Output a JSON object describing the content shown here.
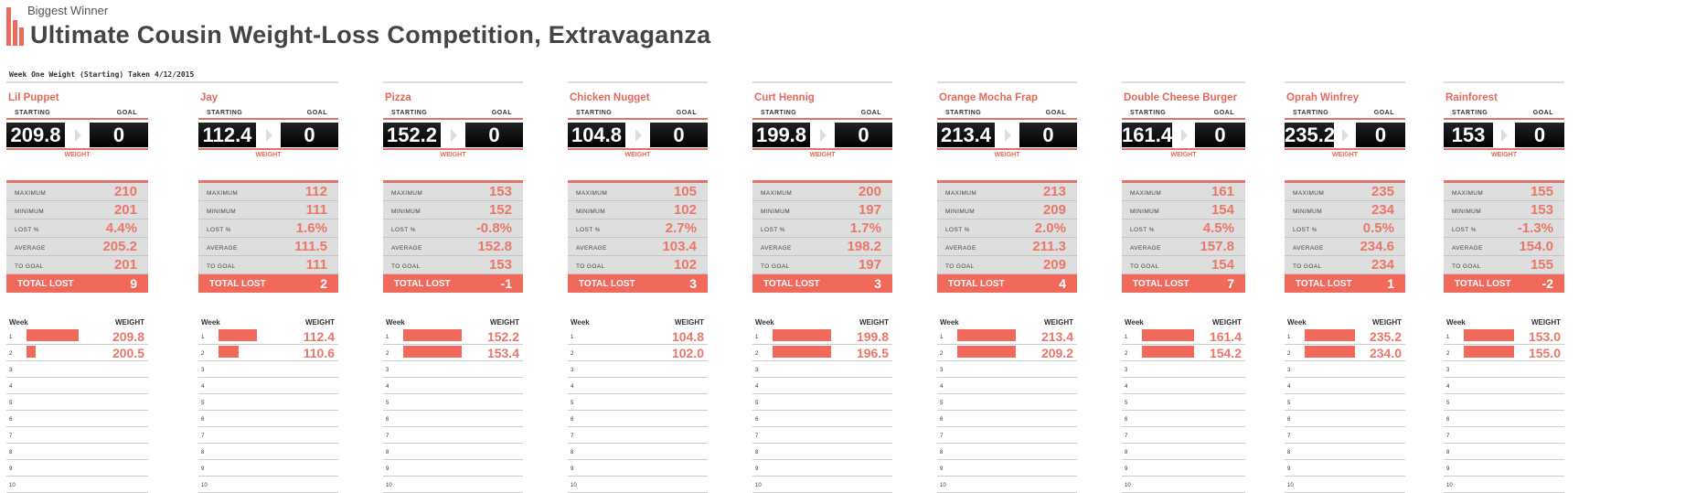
{
  "header": {
    "supertitle": "Biggest Winner",
    "title": "Ultimate Cousin Weight-Loss Competition, Extravaganza",
    "subtitle": "Week One Weight  (Starting) Taken 4/12/2015"
  },
  "labels": {
    "starting": "STARTING",
    "goal": "GOAL",
    "weight": "WEIGHT",
    "maximum": "MAXIMUM",
    "minimum": "MINIMUM",
    "lost_pct": "LOST %",
    "average": "AVERAGE",
    "to_goal": "TO GOAL",
    "total_lost": "TOTAL LOST",
    "week": "Week",
    "week_weight": "WEIGHT"
  },
  "colors": {
    "accent": "#f0695a",
    "value_text": "#e8776a",
    "stats_bg": "#dedede"
  },
  "week_numbers": [
    "1",
    "2",
    "3",
    "4",
    "5",
    "6",
    "7",
    "8",
    "9",
    "10"
  ],
  "contestants": [
    {
      "name": "Lil Puppet",
      "starting": "209.8",
      "goal": "0",
      "maximum": "210",
      "minimum": "201",
      "lost_pct": "4.4%",
      "average": "205.2",
      "to_goal": "201",
      "total_lost": "9",
      "weeks": [
        "209.8",
        "200.5"
      ],
      "bar_fill": [
        0.88,
        0.15
      ]
    },
    {
      "name": "Jay",
      "starting": "112.4",
      "goal": "0",
      "maximum": "112",
      "minimum": "111",
      "lost_pct": "1.6%",
      "average": "111.5",
      "to_goal": "111",
      "total_lost": "2",
      "weeks": [
        "112.4",
        "110.6"
      ],
      "bar_fill": [
        0.65,
        0.35
      ]
    },
    {
      "name": "Pizza",
      "starting": "152.2",
      "goal": "0",
      "maximum": "153",
      "minimum": "152",
      "lost_pct": "-0.8%",
      "average": "152.8",
      "to_goal": "153",
      "total_lost": "-1",
      "weeks": [
        "152.2",
        "153.4"
      ],
      "bar_fill": [
        1,
        1
      ]
    },
    {
      "name": "Chicken Nugget",
      "starting": "104.8",
      "goal": "0",
      "maximum": "105",
      "minimum": "102",
      "lost_pct": "2.7%",
      "average": "103.4",
      "to_goal": "102",
      "total_lost": "3",
      "weeks": [
        "104.8",
        "102.0"
      ],
      "bar_fill": [
        0,
        0
      ]
    },
    {
      "name": "Curt Hennig",
      "starting": "199.8",
      "goal": "0",
      "maximum": "200",
      "minimum": "197",
      "lost_pct": "1.7%",
      "average": "198.2",
      "to_goal": "197",
      "total_lost": "3",
      "weeks": [
        "199.8",
        "196.5"
      ],
      "bar_fill": [
        1,
        1
      ]
    },
    {
      "name": "Orange Mocha Frap",
      "starting": "213.4",
      "goal": "0",
      "maximum": "213",
      "minimum": "209",
      "lost_pct": "2.0%",
      "average": "211.3",
      "to_goal": "209",
      "total_lost": "4",
      "weeks": [
        "213.4",
        "209.2"
      ],
      "bar_fill": [
        1,
        1
      ]
    },
    {
      "name": "Double Cheese Burger",
      "starting": "161.4",
      "goal": "0",
      "maximum": "161",
      "minimum": "154",
      "lost_pct": "4.5%",
      "average": "157.8",
      "to_goal": "154",
      "total_lost": "7",
      "weeks": [
        "161.4",
        "154.2"
      ],
      "bar_fill": [
        1,
        1
      ]
    },
    {
      "name": "Oprah Winfrey",
      "starting": "235.2",
      "goal": "0",
      "maximum": "235",
      "minimum": "234",
      "lost_pct": "0.5%",
      "average": "234.6",
      "to_goal": "234",
      "total_lost": "1",
      "weeks": [
        "235.2",
        "234.0"
      ],
      "bar_fill": [
        1,
        1
      ]
    },
    {
      "name": "Rainforest",
      "starting": "153",
      "goal": "0",
      "maximum": "155",
      "minimum": "153",
      "lost_pct": "-1.3%",
      "average": "154.0",
      "to_goal": "155",
      "total_lost": "-2",
      "weeks": [
        "153.0",
        "155.0"
      ],
      "bar_fill": [
        1,
        1
      ]
    }
  ]
}
